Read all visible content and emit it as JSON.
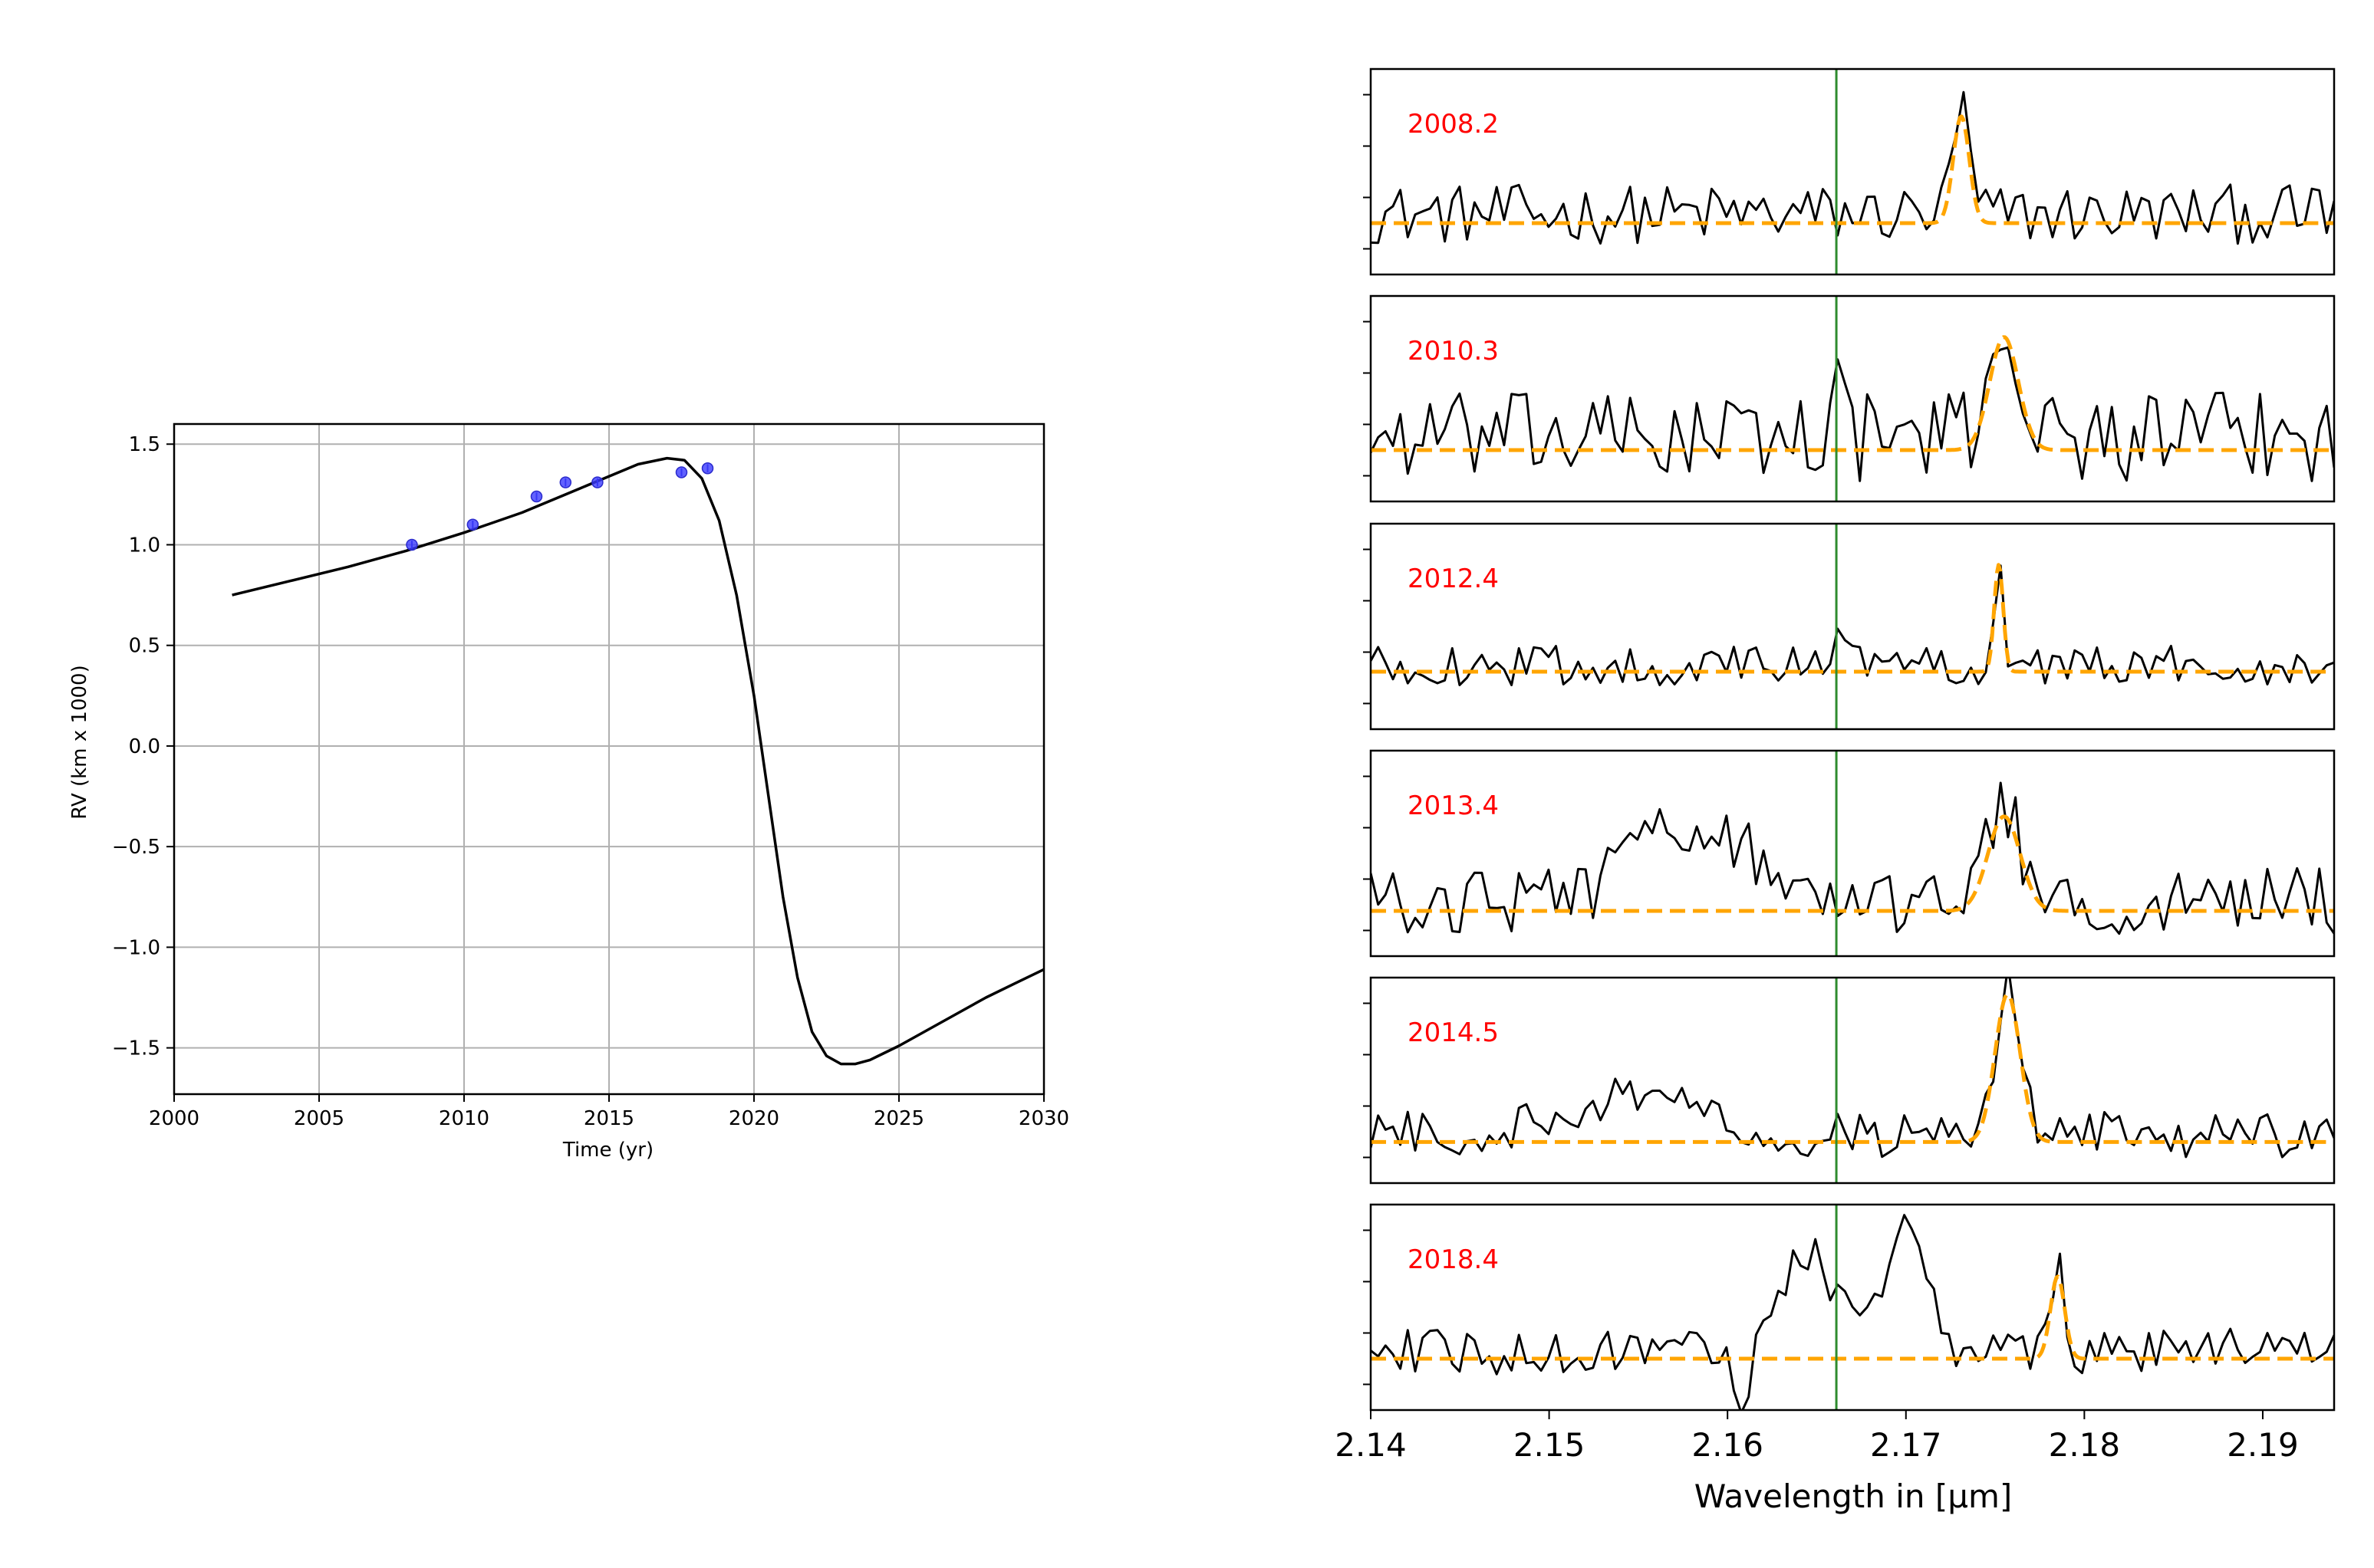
{
  "chart_data": [
    {
      "type": "line",
      "title": "",
      "xlabel": "Time (yr)",
      "ylabel": "RV (km x 1000)",
      "xlim": [
        2000,
        2030
      ],
      "ylim": [
        -1.73,
        1.6
      ],
      "grid": true,
      "xticks": [
        2000,
        2005,
        2010,
        2015,
        2020,
        2025,
        2030
      ],
      "xtick_labels": [
        "2000",
        "2005",
        "2010",
        "2015",
        "2020",
        "2025",
        "2030"
      ],
      "yticks": [
        1.5,
        1.0,
        0.5,
        0.0,
        -0.5,
        -1.0,
        -1.5
      ],
      "ytick_labels": [
        "1.5",
        "1.0",
        "0.5",
        "0.0",
        "−0.5",
        "−1.0",
        "−1.5"
      ],
      "series": [
        {
          "kind": "model-curve",
          "color": "#000000",
          "x": [
            2002,
            2004,
            2006,
            2008,
            2010,
            2012,
            2014,
            2015,
            2016,
            2017,
            2017.6,
            2018.2,
            2018.8,
            2019.4,
            2020.0,
            2020.5,
            2021.0,
            2021.5,
            2022.0,
            2022.5,
            2023.0,
            2023.5,
            2024.0,
            2025.0,
            2026.0,
            2027.0,
            2028.0,
            2029.0,
            2030.0
          ],
          "y": [
            0.75,
            0.82,
            0.89,
            0.97,
            1.06,
            1.16,
            1.28,
            1.34,
            1.4,
            1.43,
            1.42,
            1.33,
            1.12,
            0.75,
            0.25,
            -0.25,
            -0.75,
            -1.15,
            -1.42,
            -1.54,
            -1.58,
            -1.58,
            -1.56,
            -1.49,
            -1.41,
            -1.33,
            -1.25,
            -1.18,
            -1.11
          ]
        },
        {
          "kind": "observations",
          "color": "#3b3bff",
          "x": [
            2008.2,
            2010.3,
            2012.5,
            2013.5,
            2014.6,
            2017.5,
            2018.4
          ],
          "y": [
            1.0,
            1.1,
            1.24,
            1.31,
            1.31,
            1.36,
            1.38
          ],
          "err": [
            0.02,
            0.02,
            0.02,
            0.02,
            0.02,
            0.02,
            0.02
          ]
        }
      ]
    },
    {
      "type": "line",
      "title": "",
      "xlabel": "Wavelength in [μm]",
      "xlim": [
        2.14,
        2.194
      ],
      "xticks": [
        2.14,
        2.15,
        2.16,
        2.17,
        2.18,
        2.19
      ],
      "xtick_labels": [
        "2.14",
        "2.15",
        "2.16",
        "2.17",
        "2.18",
        "2.19"
      ],
      "marker_line": {
        "x": 2.1661,
        "color": "#2e8b2e"
      },
      "spectrum_color": "#000000",
      "fit_color": "#ffa500",
      "panels": [
        {
          "label": "2008.2",
          "ylim": [
            0,
            1
          ],
          "baseline": 0.25,
          "peak_center": 2.1731,
          "peak_sigma": 0.00045,
          "peak_amp": 0.52,
          "noise": 0.18,
          "features": []
        },
        {
          "label": "2010.3",
          "ylim": [
            0,
            1
          ],
          "baseline": 0.25,
          "peak_center": 2.1755,
          "peak_sigma": 0.0008,
          "peak_amp": 0.55,
          "noise": 0.27,
          "features": [
            {
              "center": 2.166,
              "sigma": 0.0004,
              "amp": 0.25
            }
          ]
        },
        {
          "label": "2012.4",
          "ylim": [
            0,
            1
          ],
          "baseline": 0.28,
          "peak_center": 2.1752,
          "peak_sigma": 0.00025,
          "peak_amp": 0.52,
          "noise": 0.12,
          "features": [
            {
              "center": 2.1665,
              "sigma": 0.0006,
              "amp": 0.2
            }
          ]
        },
        {
          "label": "2013.4",
          "ylim": [
            0,
            1
          ],
          "baseline": 0.22,
          "peak_center": 2.1755,
          "peak_sigma": 0.0009,
          "peak_amp": 0.46,
          "noise": 0.2,
          "features": [
            {
              "center": 2.158,
              "sigma": 0.003,
              "amp": 0.4
            }
          ]
        },
        {
          "label": "2014.5",
          "ylim": [
            0,
            1
          ],
          "baseline": 0.2,
          "peak_center": 2.1757,
          "peak_sigma": 0.0007,
          "peak_amp": 0.72,
          "noise": 0.14,
          "features": [
            {
              "center": 2.155,
              "sigma": 0.004,
              "amp": 0.18
            }
          ]
        },
        {
          "label": "2018.4",
          "ylim": [
            0,
            1
          ],
          "baseline": 0.25,
          "peak_center": 2.1785,
          "peak_sigma": 0.0004,
          "peak_amp": 0.4,
          "noise": 0.14,
          "features": [
            {
              "center": 2.1645,
              "sigma": 0.0018,
              "amp": 0.45
            },
            {
              "center": 2.17,
              "sigma": 0.0011,
              "amp": 0.62
            },
            {
              "center": 2.1608,
              "sigma": 0.0004,
              "amp": -0.35
            }
          ]
        }
      ]
    }
  ]
}
